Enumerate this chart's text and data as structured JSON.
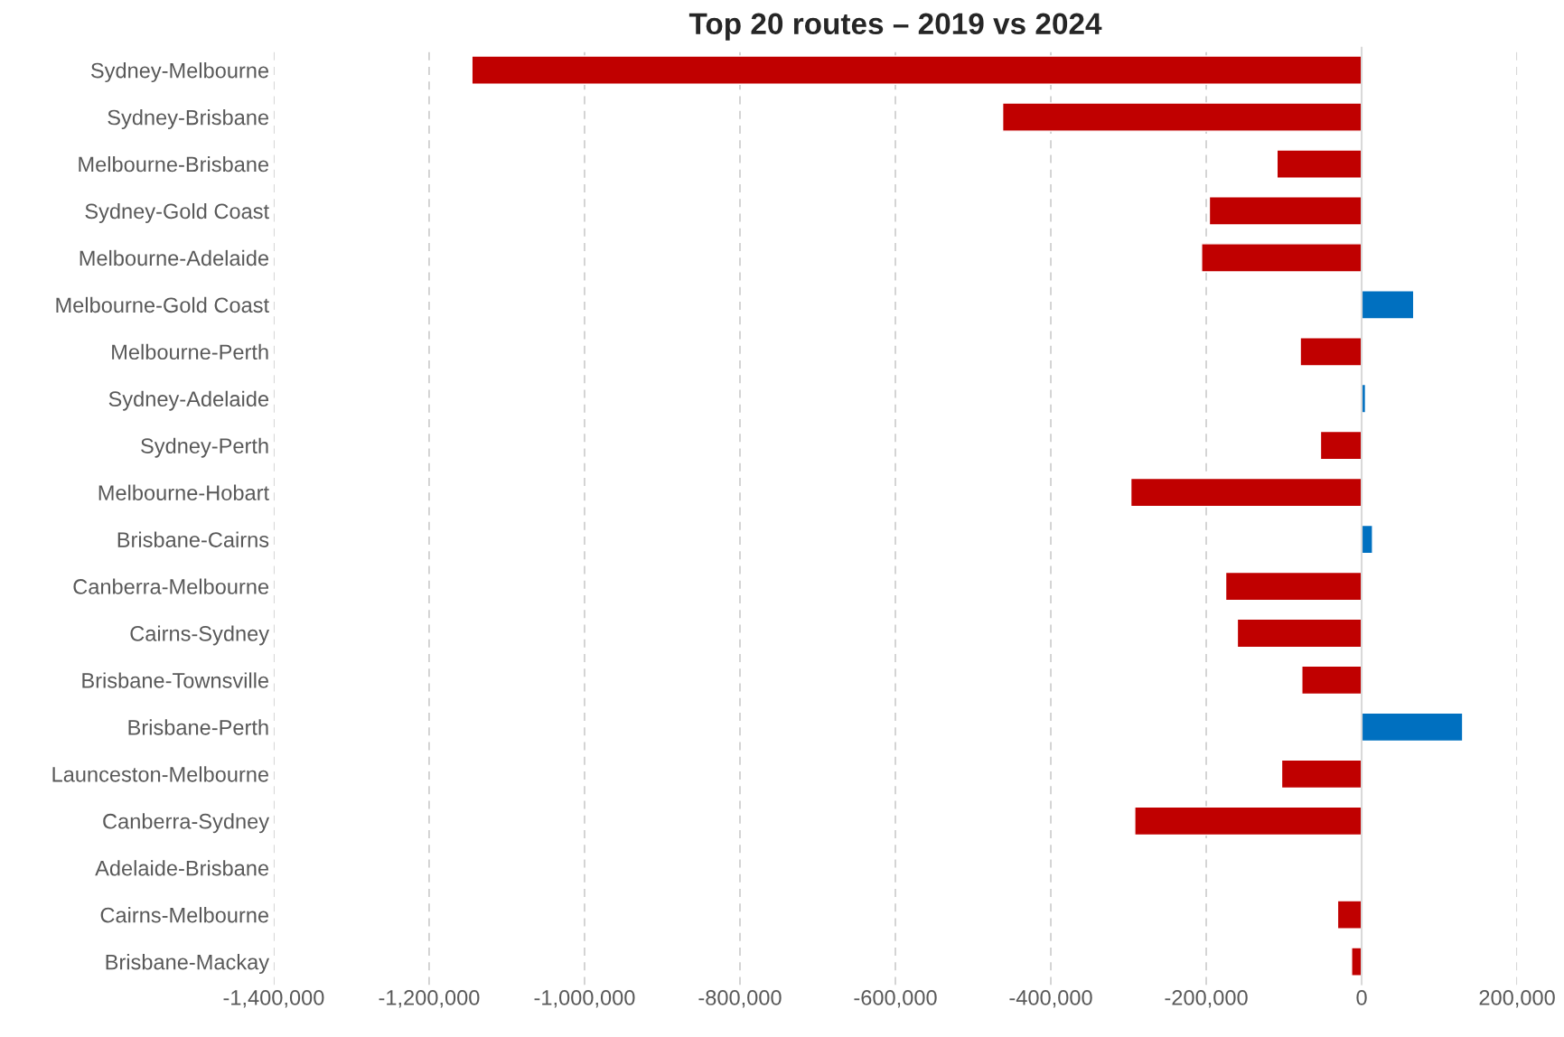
{
  "chart_data": {
    "type": "bar",
    "orientation": "horizontal",
    "title": "Top 20 routes – 2019 vs 2024",
    "categories": [
      "Sydney-Melbourne",
      "Sydney-Brisbane",
      "Melbourne-Brisbane",
      "Sydney-Gold Coast",
      "Melbourne-Adelaide",
      "Melbourne-Gold Coast",
      "Melbourne-Perth",
      "Sydney-Adelaide",
      "Sydney-Perth",
      "Melbourne-Hobart",
      "Brisbane-Cairns",
      "Canberra-Melbourne",
      "Cairns-Sydney",
      "Brisbane-Townsville",
      "Brisbane-Perth",
      "Launceston-Melbourne",
      "Canberra-Sydney",
      "Adelaide-Brisbane",
      "Cairns-Melbourne",
      "Brisbane-Mackay"
    ],
    "values": [
      -1145000,
      -462000,
      -109000,
      -196000,
      -206000,
      67000,
      -79000,
      5000,
      -53000,
      -297000,
      14000,
      -175000,
      -160000,
      -77000,
      130000,
      -103000,
      -292000,
      null,
      -31000,
      -13000
    ],
    "colors": [
      "#c00000",
      "#c00000",
      "#c00000",
      "#c00000",
      "#c00000",
      "#0070c0",
      "#c00000",
      "#0070c0",
      "#c00000",
      "#c00000",
      "#0070c0",
      "#c00000",
      "#c00000",
      "#c00000",
      "#0070c0",
      "#c00000",
      "#c00000",
      null,
      "#c00000",
      "#c00000"
    ],
    "xlim": [
      -1400000,
      200000
    ],
    "xticks": [
      {
        "value": -1400000,
        "label": "-1,400,000"
      },
      {
        "value": -1200000,
        "label": "-1,200,000"
      },
      {
        "value": -1000000,
        "label": "-1,000,000"
      },
      {
        "value": -800000,
        "label": "-800,000"
      },
      {
        "value": -600000,
        "label": "-600,000"
      },
      {
        "value": -400000,
        "label": "-400,000"
      },
      {
        "value": -200000,
        "label": "-200,000"
      },
      0,
      {
        "value": 200000,
        "label": "200,000"
      }
    ],
    "grid": "x",
    "ref_lines": [
      {
        "axis": "x",
        "value": 0,
        "color": "#d9d9d9"
      }
    ]
  }
}
